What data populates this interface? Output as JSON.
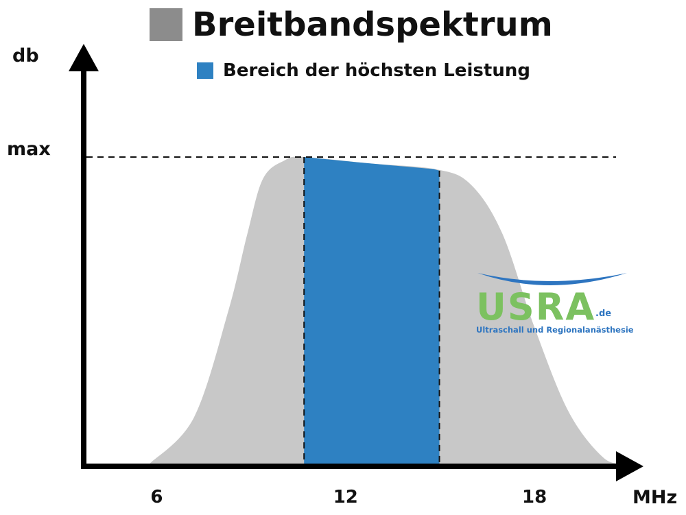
{
  "legend": {
    "spectrum": {
      "label": "Breitbandspektrum",
      "color": "#8c8c8c"
    },
    "band": {
      "label": "Bereich der höchsten Leistung",
      "color": "#2e81c2"
    }
  },
  "axes": {
    "y_label": "db",
    "y_max_label": "max",
    "x_unit": "MHz",
    "x_ticks": [
      {
        "value": 6,
        "label": "6"
      },
      {
        "value": 12,
        "label": "12"
      },
      {
        "value": 18,
        "label": "18"
      }
    ]
  },
  "spectrum": {
    "fill_color": "#c8c8c8",
    "x_range": [
      3,
      21
    ],
    "curve": [
      [
        5.1,
        0
      ],
      [
        6.5,
        0.15
      ],
      [
        7.6,
        0.5
      ],
      [
        8.2,
        0.75
      ],
      [
        8.7,
        0.93
      ],
      [
        9.4,
        0.99
      ],
      [
        10,
        1.0
      ],
      [
        12,
        0.98
      ],
      [
        14.2,
        0.96
      ],
      [
        15.3,
        0.91
      ],
      [
        16.3,
        0.75
      ],
      [
        17.3,
        0.45
      ],
      [
        18.4,
        0.17
      ],
      [
        19.5,
        0.02
      ],
      [
        20.2,
        0
      ]
    ],
    "band": {
      "from": 10,
      "to": 14.3,
      "color": "#2e81c2"
    }
  },
  "logo": {
    "brand": "USRA",
    "domain": ".de",
    "tagline": "Ultraschall und Regionalanästhesie",
    "green": "#7cc160",
    "blue": "#2e75c0"
  }
}
